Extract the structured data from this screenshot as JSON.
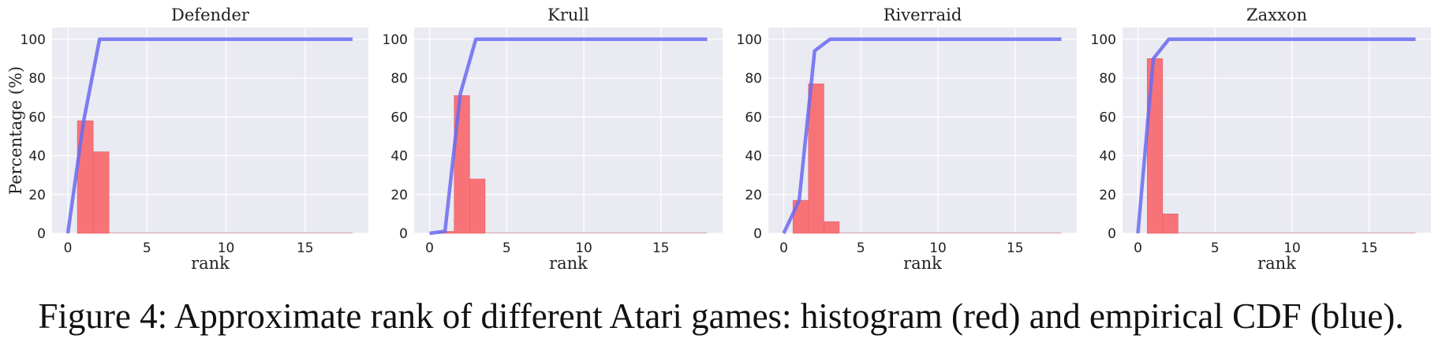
{
  "figure": {
    "caption": "Figure 4: Approximate rank of different Atari games: histogram (red) and empirical CDF (blue).",
    "colors": {
      "histogram": "#f87378",
      "cdf": "#6a6af2",
      "panel_bg": "#eaeaf2",
      "grid": "#ffffff"
    }
  },
  "chart_data": [
    {
      "type": "bar",
      "title": "Defender",
      "xlabel": "rank",
      "ylabel": "Percentage (%)",
      "xlim": [
        -1,
        19
      ],
      "ylim": [
        0,
        106
      ],
      "xticks": [
        0,
        5,
        10,
        15
      ],
      "yticks": [
        0,
        20,
        40,
        60,
        80,
        100
      ],
      "histogram": {
        "bin_edges": [
          0.6,
          1.6,
          2.6
        ],
        "values": [
          58,
          42
        ]
      },
      "cdf": {
        "x": [
          0,
          1,
          2,
          3,
          18
        ],
        "y": [
          0,
          58,
          100,
          100,
          100
        ]
      },
      "grid": true
    },
    {
      "type": "bar",
      "title": "Krull",
      "xlabel": "rank",
      "ylabel": "",
      "xlim": [
        -1,
        19
      ],
      "ylim": [
        0,
        106
      ],
      "xticks": [
        0,
        5,
        10,
        15
      ],
      "yticks": [
        0,
        20,
        40,
        60,
        80,
        100
      ],
      "histogram": {
        "bin_edges": [
          0.6,
          1.6,
          2.6,
          3.6
        ],
        "values": [
          1,
          71,
          28
        ]
      },
      "cdf": {
        "x": [
          0,
          1,
          2,
          3,
          4,
          18
        ],
        "y": [
          0,
          1,
          72,
          100,
          100,
          100
        ]
      },
      "grid": true
    },
    {
      "type": "bar",
      "title": "Riverraid",
      "xlabel": "rank",
      "ylabel": "",
      "xlim": [
        -1,
        19
      ],
      "ylim": [
        0,
        106
      ],
      "xticks": [
        0,
        5,
        10,
        15
      ],
      "yticks": [
        0,
        20,
        40,
        60,
        80,
        100
      ],
      "histogram": {
        "bin_edges": [
          0.6,
          1.6,
          2.6,
          3.6
        ],
        "values": [
          17,
          77,
          6
        ]
      },
      "cdf": {
        "x": [
          0,
          1,
          2,
          3,
          4,
          18
        ],
        "y": [
          0,
          17,
          94,
          100,
          100,
          100
        ]
      },
      "grid": true
    },
    {
      "type": "bar",
      "title": "Zaxxon",
      "xlabel": "rank",
      "ylabel": "",
      "xlim": [
        -1,
        19
      ],
      "ylim": [
        0,
        106
      ],
      "xticks": [
        0,
        5,
        10,
        15
      ],
      "yticks": [
        0,
        20,
        40,
        60,
        80,
        100
      ],
      "histogram": {
        "bin_edges": [
          0.6,
          1.6,
          2.6
        ],
        "values": [
          90,
          10
        ]
      },
      "cdf": {
        "x": [
          0,
          1,
          2,
          3,
          18
        ],
        "y": [
          0,
          90,
          100,
          100,
          100
        ]
      },
      "grid": true
    }
  ]
}
